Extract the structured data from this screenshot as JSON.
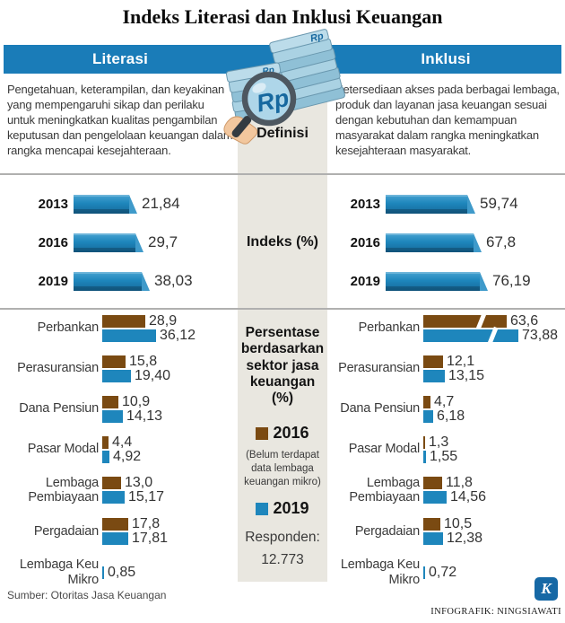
{
  "title": "Indeks Literasi dan Inklusi Keuangan",
  "colors": {
    "band_blue": "#1a7cb8",
    "bar_blue": "#1e86bc",
    "bar_brown": "#7a4a12",
    "panel_gray": "#e9e7e0"
  },
  "columns": {
    "literasi": {
      "header": "Literasi",
      "definition": "Pengetahuan, keterampilan, dan keyakinan yang mempengaruhi sikap dan perilaku untuk meningkatkan kualitas pengambilan keputusan dan pengelolaan keuangan dalam rangka mencapai kesejahteraan."
    },
    "inklusi": {
      "header": "Inklusi",
      "definition": "Ketersediaan akses pada berbagai lembaga, produk dan layanan jasa keuangan sesuai dengan kebutuhan dan kemampuan masyarakat dalam rangka meningkatkan kesejahteraan masyarakat."
    }
  },
  "middle": {
    "definisi_label": "Definisi",
    "indeks_label": "Indeks (%)",
    "sector_label": "Persentase berdasarkan sektor jasa keuangan (%)",
    "legend_2016": "2016",
    "legend_note": "(Belum terdapat data lembaga keuangan mikro)",
    "legend_2019": "2019",
    "responden_label": "Responden:",
    "responden_value": "12.773",
    "rp": "Rp"
  },
  "chart_data": [
    {
      "id": "indeks-literasi",
      "type": "bar",
      "title": "Indeks (%) — Literasi",
      "categories": [
        "2013",
        "2016",
        "2019"
      ],
      "values": [
        21.84,
        29.7,
        38.03
      ],
      "value_labels": [
        "21,84",
        "29,7",
        "38,03"
      ],
      "bar_color": "#1e86bc",
      "layout": {
        "base": 43,
        "scale": 0.87
      }
    },
    {
      "id": "indeks-inklusi",
      "type": "bar",
      "title": "Indeks (%) — Inklusi",
      "categories": [
        "2013",
        "2016",
        "2019"
      ],
      "values": [
        59.74,
        67.8,
        76.19
      ],
      "value_labels": [
        "59,74",
        "67,8",
        "76,19"
      ],
      "bar_color": "#1e86bc",
      "layout": {
        "base": 40,
        "scale": 0.85
      }
    },
    {
      "id": "sektor-literasi",
      "type": "bar",
      "title": "Persentase berdasarkan sektor jasa keuangan (%) — Literasi",
      "categories": [
        "Perbankan",
        "Perasuransian",
        "Dana Pensiun",
        "Pasar Modal",
        "Lembaga Pembiayaan",
        "Pergadaian",
        "Lembaga Keu Mikro"
      ],
      "series": [
        {
          "name": "2016",
          "color": "#7a4a12",
          "values": [
            28.9,
            15.8,
            10.9,
            4.4,
            13.0,
            17.8,
            null
          ],
          "value_labels": [
            "28,9",
            "15,8",
            "10,9",
            "4,4",
            "13,0",
            "17,8",
            null
          ]
        },
        {
          "name": "2019",
          "color": "#1e86bc",
          "values": [
            36.12,
            19.4,
            14.13,
            4.92,
            15.17,
            17.81,
            0.85
          ],
          "value_labels": [
            "36,12",
            "19,40",
            "14,13",
            "4,92",
            "15,17",
            "17,81",
            "0,85"
          ]
        }
      ],
      "layout": {
        "scale": 1.65,
        "min": 2
      }
    },
    {
      "id": "sektor-inklusi",
      "type": "bar",
      "title": "Persentase berdasarkan sektor jasa keuangan (%) — Inklusi",
      "categories": [
        "Perbankan",
        "Perasuransian",
        "Dana Pensiun",
        "Pasar Modal",
        "Lembaga Pembiayaan",
        "Pergadaian",
        "Lembaga Keu Mikro"
      ],
      "series": [
        {
          "name": "2016",
          "color": "#7a4a12",
          "values": [
            63.6,
            12.1,
            4.7,
            1.3,
            11.8,
            10.5,
            null
          ],
          "value_labels": [
            "63,6",
            "12,1",
            "4,7",
            "1,3",
            "11,8",
            "10,5",
            null
          ],
          "cap_widths": [
            93,
            null,
            null,
            null,
            null,
            null,
            null
          ],
          "broken": [
            true,
            false,
            false,
            false,
            false,
            false,
            false
          ]
        },
        {
          "name": "2019",
          "color": "#1e86bc",
          "values": [
            73.88,
            13.15,
            6.18,
            1.55,
            14.56,
            12.38,
            0.72
          ],
          "value_labels": [
            "73,88",
            "13,15",
            "6,18",
            "1,55",
            "14,56",
            "12,38",
            "0,72"
          ],
          "cap_widths": [
            106,
            null,
            null,
            null,
            null,
            null,
            null
          ],
          "broken": [
            true,
            false,
            false,
            false,
            false,
            false,
            false
          ]
        }
      ],
      "layout": {
        "scale": 1.8,
        "min": 2
      }
    }
  ],
  "footer": {
    "source": "Sumber: Otoritas Jasa Keuangan",
    "credit": "INFOGRAFIK: NINGSIAWATI",
    "logo_letter": "K"
  }
}
